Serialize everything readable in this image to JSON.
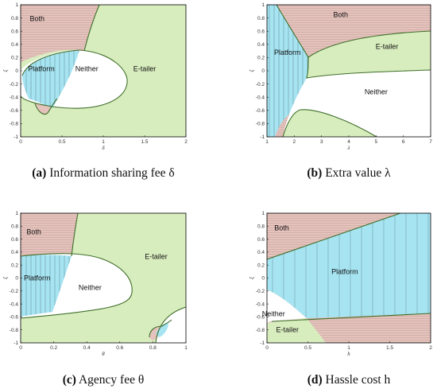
{
  "colors": {
    "both": "#e6c2bc",
    "platform": "#a6e4f2",
    "etailer": "#d8edbe",
    "neither": "#ffffff",
    "boundary": "#3f6f2a"
  },
  "chart_data": [
    {
      "type": "area",
      "panel": "a",
      "caption_letter": "(a)",
      "caption_text": "Information sharing fee δ",
      "xlabel": "δ",
      "ylabel": "ξ",
      "xlim": [
        0,
        2
      ],
      "ylim": [
        -1,
        1
      ],
      "xticks": [
        "0",
        "0.5",
        "1",
        "1.5",
        "2"
      ],
      "yticks": [
        "1",
        "0.8",
        "0.6",
        "0.4",
        "0.2",
        "0",
        "-0.2",
        "-0.4",
        "-0.6",
        "-0.8",
        "-1"
      ],
      "regions": [
        {
          "name": "Both",
          "label_at": [
            0.2,
            0.79
          ]
        },
        {
          "name": "Platform",
          "label_at": [
            0.25,
            0.03
          ]
        },
        {
          "name": "Neither",
          "label_at": [
            0.8,
            0.03
          ]
        },
        {
          "name": "E-tailer",
          "label_at": [
            1.5,
            0.03
          ]
        }
      ]
    },
    {
      "type": "area",
      "panel": "b",
      "caption_letter": "(b)",
      "caption_text": "Extra value λ",
      "xlabel": "λ",
      "ylabel": "ξ",
      "xlim": [
        1,
        7
      ],
      "ylim": [
        -1,
        1
      ],
      "xticks": [
        "1",
        "2",
        "3",
        "4",
        "5",
        "6",
        "7"
      ],
      "yticks": [
        "1",
        "0.8",
        "0.6",
        "0.4",
        "0.2",
        "0",
        "-0.2",
        "-0.4",
        "-0.6",
        "-0.8",
        "-1"
      ],
      "regions": [
        {
          "name": "Both",
          "label_at": [
            3.7,
            0.85
          ]
        },
        {
          "name": "Platform",
          "label_at": [
            1.75,
            0.28
          ]
        },
        {
          "name": "E-tailer",
          "label_at": [
            5.4,
            0.37
          ]
        },
        {
          "name": "Neither",
          "label_at": [
            5.0,
            -0.32
          ]
        }
      ]
    },
    {
      "type": "area",
      "panel": "c",
      "caption_letter": "(c)",
      "caption_text": "Agency fee θ",
      "xlabel": "θ",
      "ylabel": "ξ",
      "xlim": [
        0,
        1
      ],
      "ylim": [
        -1,
        1
      ],
      "xticks": [
        "0",
        "0.2",
        "0.4",
        "0.6",
        "0.8",
        "1"
      ],
      "yticks": [
        "1",
        "0.8",
        "0.6",
        "0.4",
        "0.2",
        "0",
        "-0.2",
        "-0.4",
        "-0.6",
        "-0.8",
        "-1"
      ],
      "regions": [
        {
          "name": "Both",
          "label_at": [
            0.08,
            0.71
          ]
        },
        {
          "name": "E-tailer",
          "label_at": [
            0.82,
            0.33
          ]
        },
        {
          "name": "Platform",
          "label_at": [
            0.1,
            0.0
          ]
        },
        {
          "name": "Neither",
          "label_at": [
            0.42,
            -0.15
          ]
        }
      ]
    },
    {
      "type": "area",
      "panel": "d",
      "caption_letter": "(d)",
      "caption_text": "Hassle cost h",
      "xlabel": "h",
      "ylabel": "ξ",
      "xlim": [
        0,
        2
      ],
      "ylim": [
        -1,
        1
      ],
      "xticks": [
        "0",
        "0.5",
        "1",
        "1.5",
        "2"
      ],
      "yticks": [
        "1",
        "0.8",
        "0.6",
        "0.4",
        "0.2",
        "0",
        "-0.2",
        "-0.4",
        "-0.6",
        "-0.8",
        "-1"
      ],
      "regions": [
        {
          "name": "Both",
          "label_at": [
            0.18,
            0.77
          ]
        },
        {
          "name": "Platform",
          "label_at": [
            0.95,
            0.1
          ]
        },
        {
          "name": "Neither",
          "label_at": [
            0.08,
            -0.55
          ]
        },
        {
          "name": "E-tailer",
          "label_at": [
            0.25,
            -0.8
          ]
        }
      ]
    }
  ]
}
